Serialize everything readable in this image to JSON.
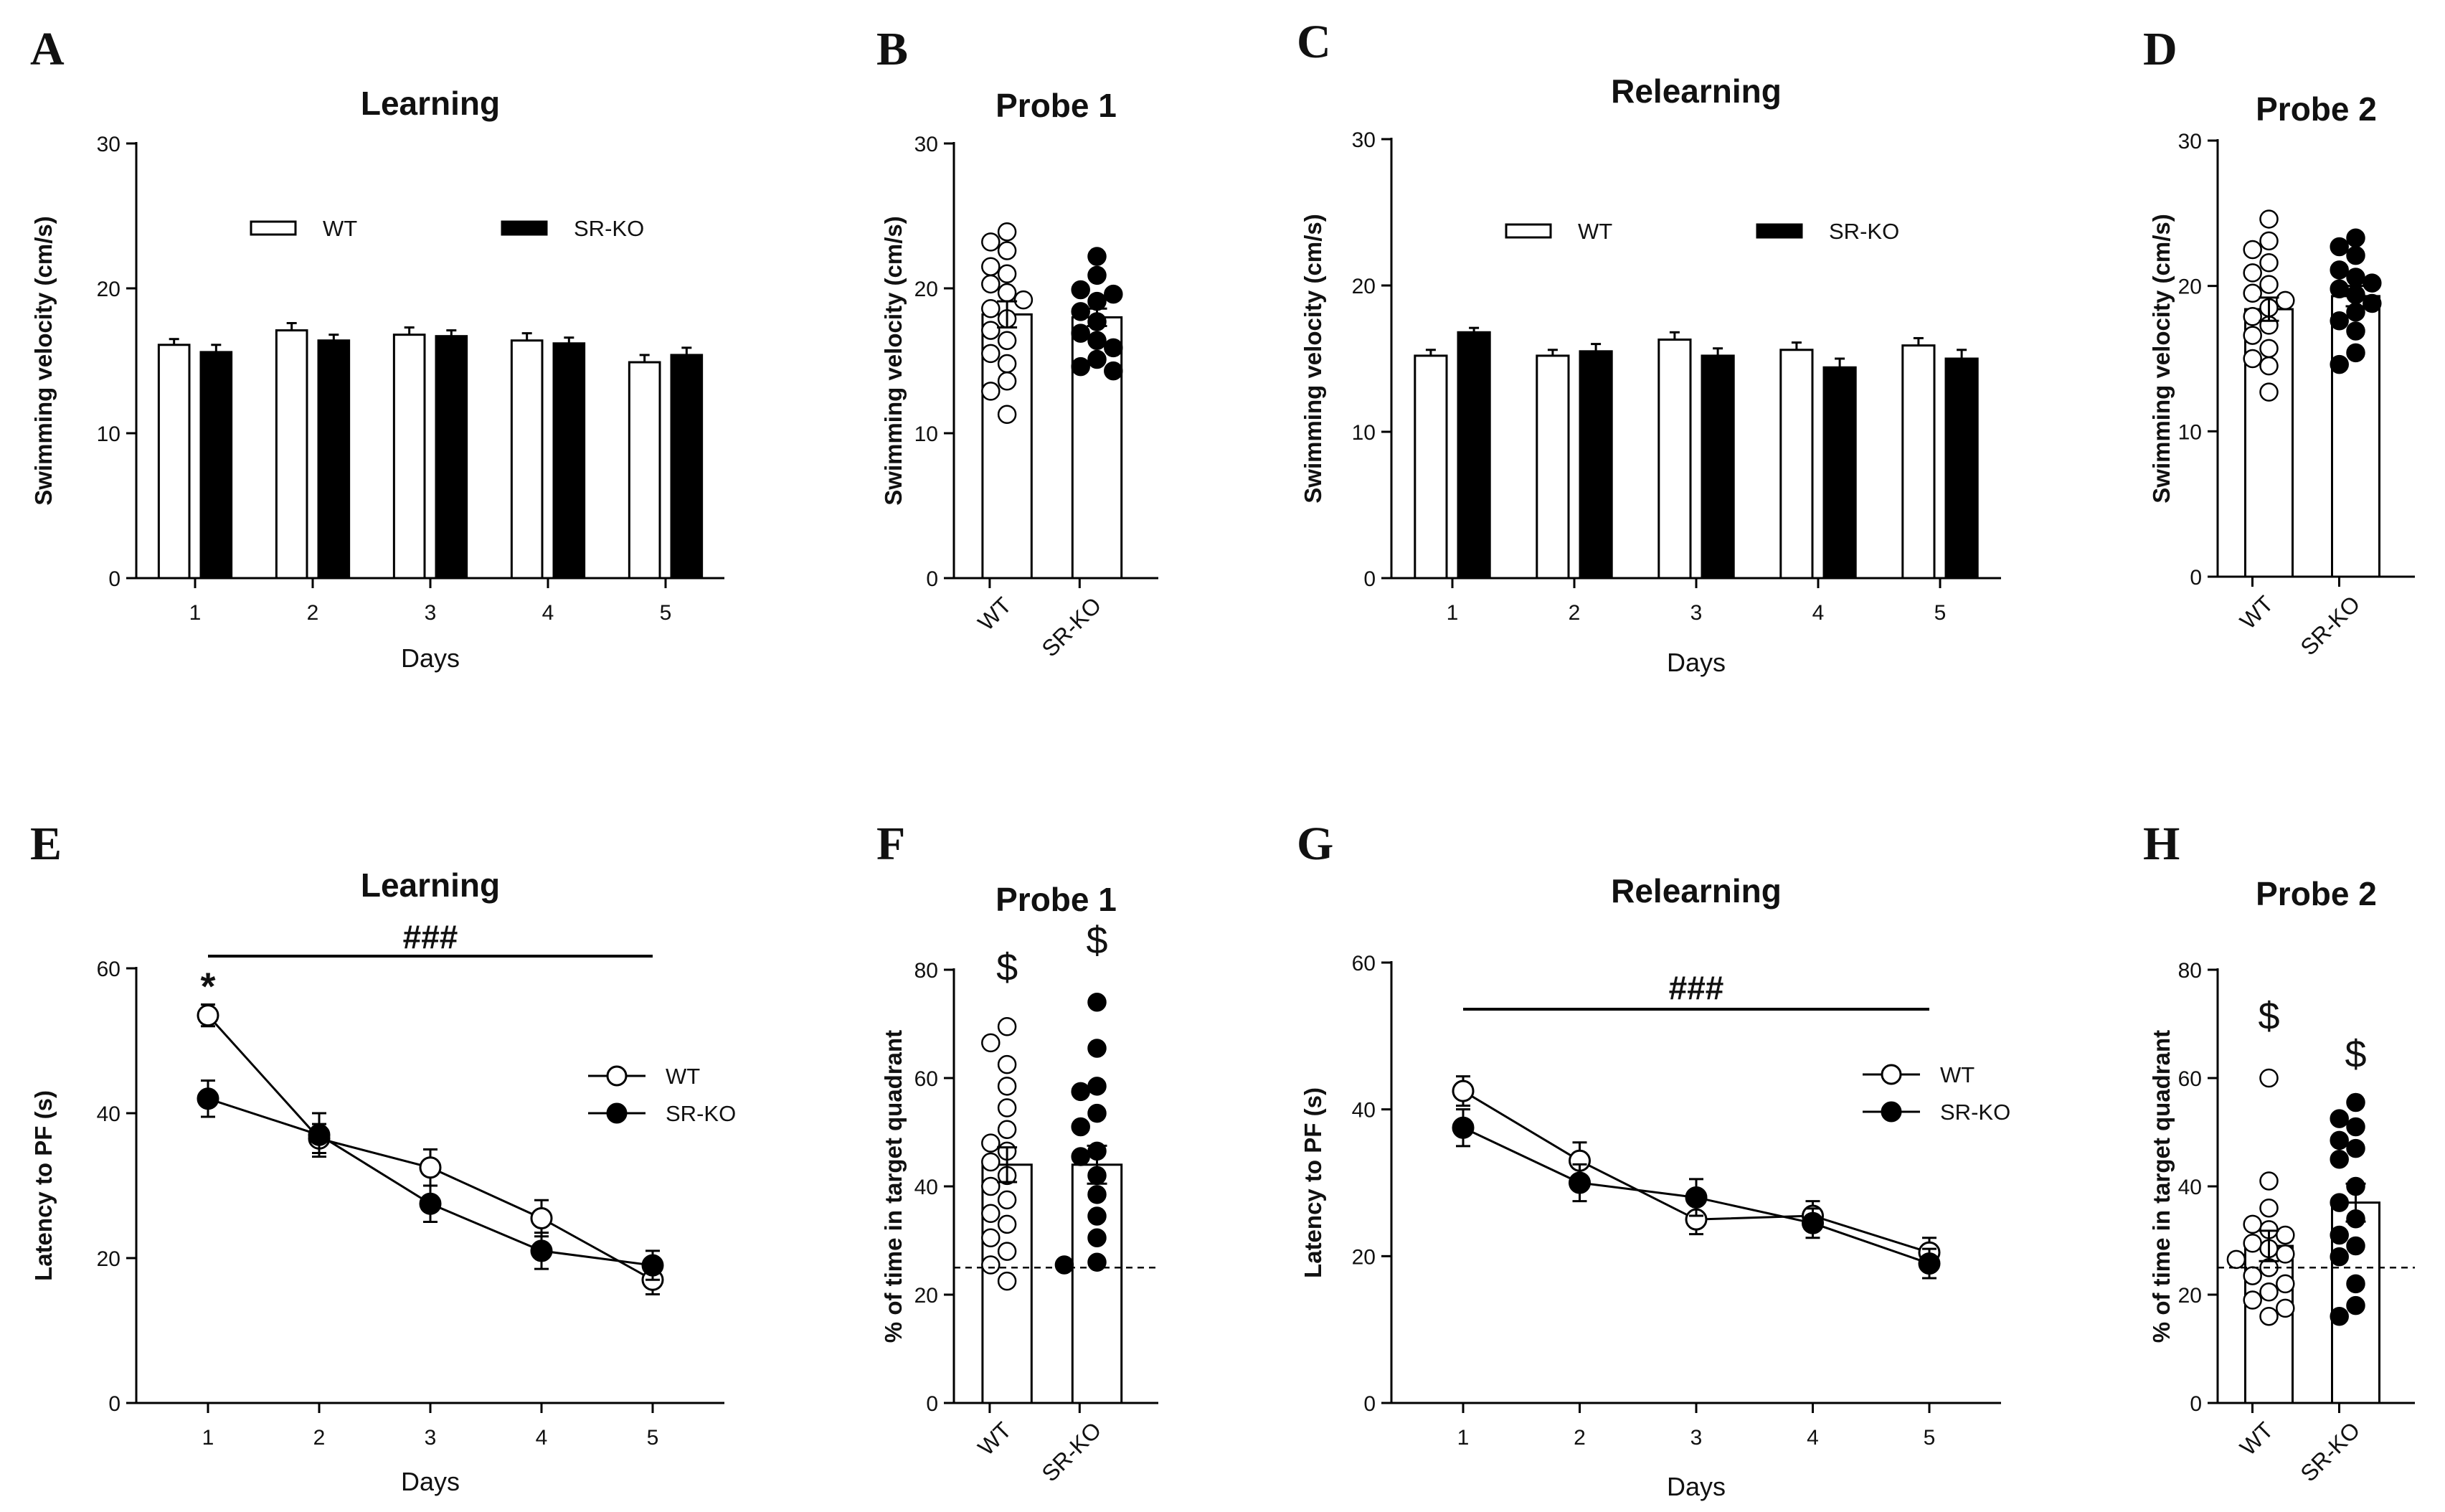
{
  "chart_data": [
    {
      "id": "A",
      "letter": "A",
      "type": "bar",
      "title": "Learning",
      "xlabel": "Days",
      "ylabel": "Swimming velocity (cm/s)",
      "ylim": [
        0,
        30
      ],
      "yticks": [
        0,
        10,
        20,
        30
      ],
      "categories": [
        "1",
        "2",
        "3",
        "4",
        "5"
      ],
      "series": [
        {
          "name": "WT",
          "fill": "#ffffff",
          "values": [
            16.1,
            17.1,
            16.8,
            16.4,
            14.9
          ],
          "err": [
            0.4,
            0.5,
            0.5,
            0.5,
            0.5
          ]
        },
        {
          "name": "SR-KO",
          "fill": "#000000",
          "values": [
            15.6,
            16.4,
            16.7,
            16.2,
            15.4
          ],
          "err": [
            0.5,
            0.4,
            0.4,
            0.4,
            0.5
          ]
        }
      ],
      "legend": "top"
    },
    {
      "id": "B",
      "letter": "B",
      "type": "scatter-bar",
      "title": "Probe 1",
      "ylabel": "Swimming velocity (cm/s)",
      "ylim": [
        0,
        30
      ],
      "yticks": [
        0,
        10,
        20,
        30
      ],
      "groups": [
        {
          "name": "WT",
          "fill": "#ffffff",
          "mean": 18.2,
          "sem": 0.9,
          "points": [
            23.9,
            23.2,
            22.6,
            21.5,
            21.0,
            20.3,
            19.7,
            19.2,
            18.6,
            17.9,
            17.1,
            16.4,
            15.5,
            14.8,
            13.6,
            12.9,
            11.3
          ]
        },
        {
          "name": "SR-KO",
          "fill": "#000000",
          "mean": 18.0,
          "sem": 0.6,
          "points": [
            22.2,
            20.9,
            19.9,
            19.6,
            19.1,
            18.4,
            17.7,
            16.9,
            16.4,
            15.9,
            15.1,
            14.6,
            14.3
          ]
        }
      ],
      "ref_line": null,
      "significance": []
    },
    {
      "id": "C",
      "letter": "C",
      "type": "bar",
      "title": "Relearning",
      "xlabel": "Days",
      "ylabel": "Swimming velocity (cm/s)",
      "ylim": [
        0,
        30
      ],
      "yticks": [
        0,
        10,
        20,
        30
      ],
      "categories": [
        "1",
        "2",
        "3",
        "4",
        "5"
      ],
      "series": [
        {
          "name": "WT",
          "fill": "#ffffff",
          "values": [
            15.2,
            15.2,
            16.3,
            15.6,
            15.9
          ],
          "err": [
            0.4,
            0.4,
            0.5,
            0.5,
            0.5
          ]
        },
        {
          "name": "SR-KO",
          "fill": "#000000",
          "values": [
            16.8,
            15.5,
            15.2,
            14.4,
            15.0
          ],
          "err": [
            0.3,
            0.5,
            0.5,
            0.6,
            0.6
          ]
        }
      ],
      "legend": "top"
    },
    {
      "id": "D",
      "letter": "D",
      "type": "scatter-bar",
      "title": "Probe 2",
      "ylabel": "Swimming velocity (cm/s)",
      "ylim": [
        0,
        30
      ],
      "yticks": [
        0,
        10,
        20,
        30
      ],
      "groups": [
        {
          "name": "WT",
          "fill": "#ffffff",
          "mean": 18.4,
          "sem": 0.8,
          "points": [
            24.6,
            23.1,
            22.5,
            21.6,
            20.9,
            20.1,
            19.5,
            19.0,
            18.5,
            17.9,
            17.3,
            16.6,
            15.7,
            15.0,
            14.5,
            12.7
          ]
        },
        {
          "name": "SR-KO",
          "fill": "#000000",
          "mean": 19.3,
          "sem": 0.7,
          "points": [
            23.3,
            22.7,
            22.1,
            21.1,
            20.6,
            20.2,
            19.8,
            19.4,
            18.8,
            18.2,
            17.6,
            16.9,
            15.4,
            14.6
          ]
        }
      ],
      "ref_line": null,
      "significance": []
    },
    {
      "id": "E",
      "letter": "E",
      "type": "line",
      "title": "Learning",
      "xlabel": "Days",
      "ylabel": "Latency to PF (s)",
      "ylim": [
        0,
        60
      ],
      "yticks": [
        0,
        20,
        40,
        60
      ],
      "x": [
        "1",
        "2",
        "3",
        "4",
        "5"
      ],
      "series": [
        {
          "name": "WT",
          "fill": "#ffffff",
          "values": [
            53.5,
            36.5,
            32.5,
            25.5,
            17.0
          ],
          "err": [
            1.5,
            2.0,
            2.5,
            2.5,
            2.0
          ]
        },
        {
          "name": "SR-KO",
          "fill": "#000000",
          "values": [
            42.0,
            37.0,
            27.5,
            21.0,
            19.0
          ],
          "err": [
            2.5,
            3.0,
            2.5,
            2.5,
            2.0
          ]
        }
      ],
      "legend": "right",
      "hline_label": "###",
      "star": {
        "label": "*",
        "at": "1"
      }
    },
    {
      "id": "F",
      "letter": "F",
      "type": "scatter-bar",
      "title": "Probe 1",
      "ylabel": "% of time in target quadrant",
      "ylim": [
        0,
        80
      ],
      "yticks": [
        0,
        20,
        40,
        60,
        80
      ],
      "groups": [
        {
          "name": "WT",
          "fill": "#ffffff",
          "mean": 44.0,
          "sem": 3.2,
          "points": [
            69.5,
            66.5,
            62.5,
            58.5,
            54.5,
            50.5,
            48.0,
            46.5,
            44.5,
            42.0,
            40.0,
            37.5,
            35.0,
            33.0,
            30.5,
            28.0,
            25.5,
            22.5
          ]
        },
        {
          "name": "SR-KO",
          "fill": "#000000",
          "mean": 44.0,
          "sem": 3.5,
          "points": [
            74.0,
            65.5,
            58.5,
            57.5,
            53.5,
            51.0,
            46.5,
            45.5,
            42.0,
            38.5,
            34.5,
            30.5,
            26.0,
            25.5
          ]
        }
      ],
      "ref_line": 25,
      "significance": [
        {
          "label": "$",
          "group": "WT",
          "y": 78
        },
        {
          "label": "$",
          "group": "SR-KO",
          "y": 83
        }
      ]
    },
    {
      "id": "G",
      "letter": "G",
      "type": "line",
      "title": "Relearning",
      "xlabel": "Days",
      "ylabel": "Latency to PF (s)",
      "ylim": [
        0,
        60
      ],
      "yticks": [
        0,
        20,
        40,
        60
      ],
      "x": [
        "1",
        "2",
        "3",
        "4",
        "5"
      ],
      "series": [
        {
          "name": "WT",
          "fill": "#ffffff",
          "values": [
            42.5,
            33.0,
            25.0,
            25.5,
            20.5
          ],
          "err": [
            2.0,
            2.5,
            2.0,
            2.0,
            2.0
          ]
        },
        {
          "name": "SR-KO",
          "fill": "#000000",
          "values": [
            37.5,
            30.0,
            28.0,
            24.5,
            19.0
          ],
          "err": [
            2.5,
            2.5,
            2.5,
            2.0,
            2.0
          ]
        }
      ],
      "legend": "right",
      "hline_label": "###"
    },
    {
      "id": "H",
      "letter": "H",
      "type": "scatter-bar",
      "title": "Probe 2",
      "ylabel": "% of time in target quadrant",
      "ylim": [
        0,
        80
      ],
      "yticks": [
        0,
        20,
        40,
        60,
        80
      ],
      "groups": [
        {
          "name": "WT",
          "fill": "#ffffff",
          "mean": 29.0,
          "sem": 2.8,
          "points": [
            60.0,
            41.0,
            36.0,
            33.0,
            32.0,
            31.0,
            29.5,
            28.5,
            27.5,
            26.5,
            25.0,
            23.5,
            22.0,
            20.5,
            19.0,
            17.5,
            16.0
          ]
        },
        {
          "name": "SR-KO",
          "fill": "#000000",
          "mean": 37.0,
          "sem": 3.5,
          "points": [
            55.5,
            52.5,
            51.0,
            48.5,
            47.0,
            45.0,
            40.0,
            37.0,
            34.0,
            31.0,
            29.0,
            27.0,
            22.0,
            18.0,
            16.0
          ]
        }
      ],
      "ref_line": 25,
      "significance": [
        {
          "label": "$",
          "group": "WT",
          "y": 69
        },
        {
          "label": "$",
          "group": "SR-KO",
          "y": 62
        }
      ]
    }
  ]
}
